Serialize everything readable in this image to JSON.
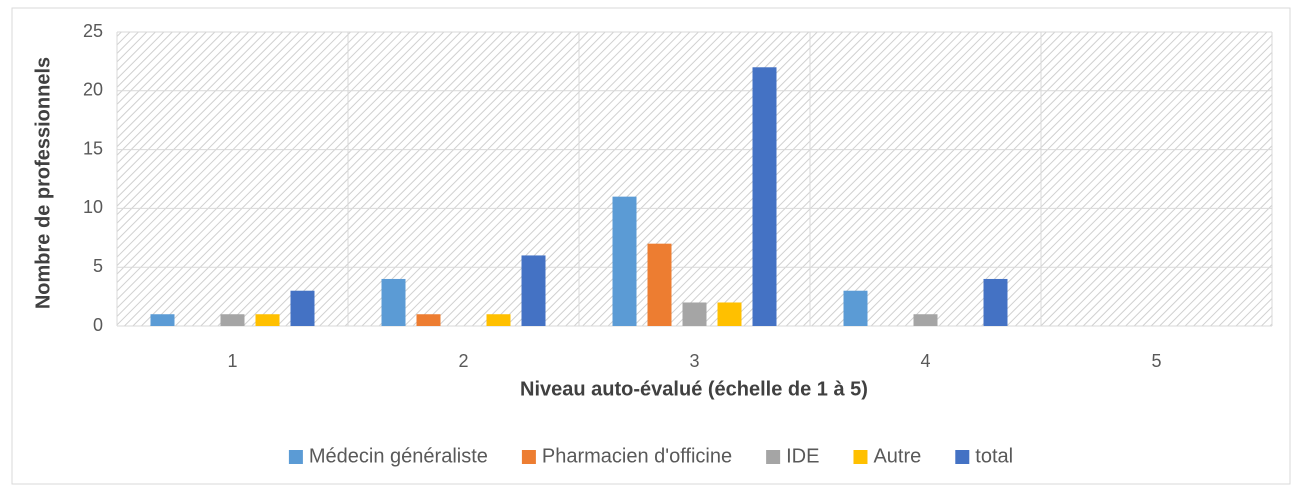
{
  "chart_data": {
    "type": "bar",
    "xlabel": "Niveau auto-évalué (échelle de 1 à 5)",
    "ylabel": "Nombre de professionnels",
    "categories": [
      "1",
      "2",
      "3",
      "4",
      "5"
    ],
    "series": [
      {
        "name": "Médecin généraliste",
        "color": "#5b9bd5",
        "values": [
          1,
          4,
          11,
          3,
          0
        ]
      },
      {
        "name": "Pharmacien d'officine",
        "color": "#ed7d31",
        "values": [
          0,
          1,
          7,
          0,
          0
        ]
      },
      {
        "name": "IDE",
        "color": "#a5a5a5",
        "values": [
          1,
          0,
          2,
          1,
          0
        ]
      },
      {
        "name": "Autre",
        "color": "#ffc000",
        "values": [
          1,
          1,
          2,
          0,
          0
        ]
      },
      {
        "name": "total",
        "color": "#4472c4",
        "values": [
          3,
          6,
          22,
          4,
          0
        ]
      }
    ],
    "ylim": [
      0,
      25
    ],
    "yticks": [
      0,
      5,
      10,
      15,
      20,
      25
    ],
    "grid": true,
    "legend": "bottom"
  }
}
